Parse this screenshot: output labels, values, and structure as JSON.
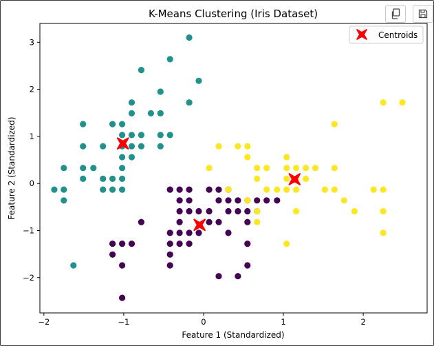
{
  "toolbar": {
    "copy_icon": "copy-icon",
    "save_icon": "floppy-disk-icon"
  },
  "chart_data": {
    "type": "scatter",
    "title": "K-Means Clustering (Iris Dataset)",
    "xlabel": "Feature 1 (Standardized)",
    "ylabel": "Feature 2 (Standardized)",
    "xlim": [
      -2.05,
      2.8
    ],
    "ylim": [
      -2.75,
      3.4
    ],
    "xticks": [
      -2,
      -1,
      0,
      1,
      2
    ],
    "xtick_labels": [
      "−2",
      "−1",
      "0",
      "1",
      "2"
    ],
    "yticks": [
      -2,
      -1,
      0,
      1,
      2,
      3
    ],
    "ytick_labels": [
      "−2",
      "−1",
      "0",
      "1",
      "2",
      "3"
    ],
    "grid": false,
    "legend": {
      "position": "top-right",
      "entries": [
        "Centroids"
      ]
    },
    "colors": {
      "cluster_0": "#440154",
      "cluster_1": "#21918c",
      "cluster_2": "#fde725",
      "centroid": "#ff0000"
    },
    "series": [
      {
        "cluster": 0,
        "color": "#440154",
        "points": [
          [
            -1.02,
            -2.43
          ],
          [
            -1.02,
            -1.74
          ],
          [
            -1.02,
            -1.28
          ],
          [
            -1.14,
            -1.28
          ],
          [
            -1.14,
            -1.51
          ],
          [
            -0.9,
            -1.28
          ],
          [
            -0.78,
            -0.82
          ],
          [
            -0.42,
            -0.13
          ],
          [
            -0.42,
            -1.05
          ],
          [
            -0.42,
            -1.28
          ],
          [
            -0.42,
            -1.51
          ],
          [
            -0.42,
            -1.74
          ],
          [
            -0.3,
            -1.28
          ],
          [
            -0.3,
            -1.05
          ],
          [
            -0.3,
            -0.82
          ],
          [
            -0.3,
            -0.59
          ],
          [
            -0.3,
            -0.36
          ],
          [
            -0.3,
            -0.13
          ],
          [
            -0.18,
            -0.13
          ],
          [
            -0.18,
            -0.36
          ],
          [
            -0.18,
            -0.59
          ],
          [
            -0.18,
            -1.05
          ],
          [
            -0.18,
            -1.28
          ],
          [
            -0.06,
            -0.59
          ],
          [
            -0.06,
            -1.05
          ],
          [
            0.07,
            -0.82
          ],
          [
            0.07,
            -0.59
          ],
          [
            0.07,
            -0.13
          ],
          [
            0.19,
            -0.13
          ],
          [
            0.19,
            -0.36
          ],
          [
            0.19,
            -0.82
          ],
          [
            0.19,
            -1.97
          ],
          [
            0.31,
            -0.13
          ],
          [
            0.31,
            -0.36
          ],
          [
            0.31,
            -0.59
          ],
          [
            0.31,
            -1.05
          ],
          [
            0.43,
            -0.36
          ],
          [
            0.43,
            -0.59
          ],
          [
            0.43,
            -1.97
          ],
          [
            0.55,
            -0.36
          ],
          [
            0.55,
            -0.59
          ],
          [
            0.55,
            -0.82
          ],
          [
            0.55,
            -1.28
          ],
          [
            0.55,
            -1.74
          ],
          [
            0.67,
            -0.36
          ],
          [
            0.67,
            -0.59
          ],
          [
            0.79,
            -0.36
          ],
          [
            0.92,
            -0.36
          ]
        ]
      },
      {
        "cluster": 1,
        "color": "#21918c",
        "points": [
          [
            -1.87,
            -0.13
          ],
          [
            -1.75,
            -0.13
          ],
          [
            -1.75,
            -0.36
          ],
          [
            -1.75,
            0.33
          ],
          [
            -1.63,
            -1.74
          ],
          [
            -1.51,
            1.26
          ],
          [
            -1.51,
            0.79
          ],
          [
            -1.51,
            0.33
          ],
          [
            -1.51,
            0.1
          ],
          [
            -1.38,
            0.33
          ],
          [
            -1.26,
            0.79
          ],
          [
            -1.26,
            0.1
          ],
          [
            -1.26,
            -0.13
          ],
          [
            -1.14,
            1.26
          ],
          [
            -1.14,
            0.1
          ],
          [
            -1.14,
            -0.13
          ],
          [
            -1.02,
            1.26
          ],
          [
            -1.02,
            1.03
          ],
          [
            -1.02,
            0.79
          ],
          [
            -1.02,
            0.56
          ],
          [
            -1.02,
            0.33
          ],
          [
            -1.02,
            0.1
          ],
          [
            -1.02,
            -0.13
          ],
          [
            -0.9,
            1.72
          ],
          [
            -0.9,
            1.49
          ],
          [
            -0.9,
            1.03
          ],
          [
            -0.9,
            0.79
          ],
          [
            -0.9,
            0.56
          ],
          [
            -0.78,
            2.41
          ],
          [
            -0.78,
            1.03
          ],
          [
            -0.78,
            0.79
          ],
          [
            -0.66,
            1.49
          ],
          [
            -0.54,
            1.95
          ],
          [
            -0.54,
            1.49
          ],
          [
            -0.54,
            1.03
          ],
          [
            -0.54,
            0.79
          ],
          [
            -0.42,
            2.64
          ],
          [
            -0.42,
            1.03
          ],
          [
            -0.18,
            3.1
          ],
          [
            -0.18,
            1.72
          ],
          [
            -0.06,
            2.18
          ]
        ]
      },
      {
        "cluster": 2,
        "color": "#fde725",
        "points": [
          [
            0.07,
            0.33
          ],
          [
            0.19,
            0.79
          ],
          [
            0.31,
            -0.13
          ],
          [
            0.43,
            0.79
          ],
          [
            0.55,
            0.79
          ],
          [
            0.55,
            0.56
          ],
          [
            0.55,
            -0.36
          ],
          [
            0.67,
            0.33
          ],
          [
            0.67,
            0.1
          ],
          [
            0.67,
            -0.59
          ],
          [
            0.67,
            -0.82
          ],
          [
            0.79,
            0.33
          ],
          [
            0.79,
            -0.13
          ],
          [
            0.92,
            -0.13
          ],
          [
            1.04,
            0.56
          ],
          [
            1.04,
            0.33
          ],
          [
            1.04,
            0.1
          ],
          [
            1.04,
            -0.13
          ],
          [
            1.04,
            -1.28
          ],
          [
            1.16,
            0.33
          ],
          [
            1.16,
            0.1
          ],
          [
            1.16,
            -0.13
          ],
          [
            1.16,
            -0.59
          ],
          [
            1.28,
            0.33
          ],
          [
            1.28,
            0.1
          ],
          [
            1.4,
            0.33
          ],
          [
            1.52,
            -0.13
          ],
          [
            1.64,
            1.26
          ],
          [
            1.64,
            0.33
          ],
          [
            1.64,
            -0.13
          ],
          [
            1.76,
            -0.36
          ],
          [
            1.89,
            -0.59
          ],
          [
            2.13,
            -0.13
          ],
          [
            2.25,
            1.72
          ],
          [
            2.25,
            -0.13
          ],
          [
            2.25,
            -0.59
          ],
          [
            2.25,
            -1.05
          ],
          [
            2.49,
            1.72
          ]
        ]
      }
    ],
    "centroids": [
      [
        -1.01,
        0.85
      ],
      [
        -0.05,
        -0.88
      ],
      [
        1.14,
        0.09
      ]
    ]
  }
}
